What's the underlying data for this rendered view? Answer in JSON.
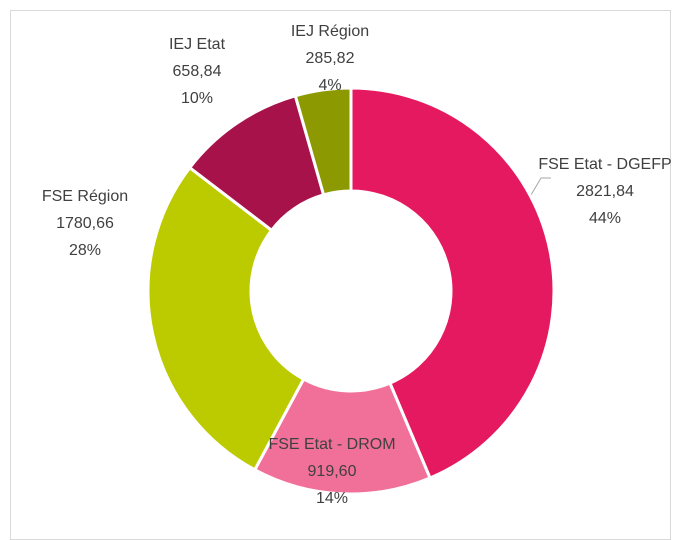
{
  "chart_data": {
    "type": "donut",
    "categories": [
      "FSE Etat - DGEFP",
      "FSE Etat - DROM",
      "FSE Région",
      "IEJ Etat",
      "IEJ Région"
    ],
    "values": [
      2821.84,
      919.6,
      1780.66,
      658.84,
      285.82
    ],
    "value_labels": [
      "2821,84",
      "919,60",
      "1780,66",
      "658,84",
      "285,82"
    ],
    "percent_labels": [
      "44%",
      "14%",
      "28%",
      "10%",
      "4%"
    ],
    "colors": [
      "#e5195f",
      "#f07099",
      "#bccb00",
      "#a8124a",
      "#8c9900"
    ]
  }
}
